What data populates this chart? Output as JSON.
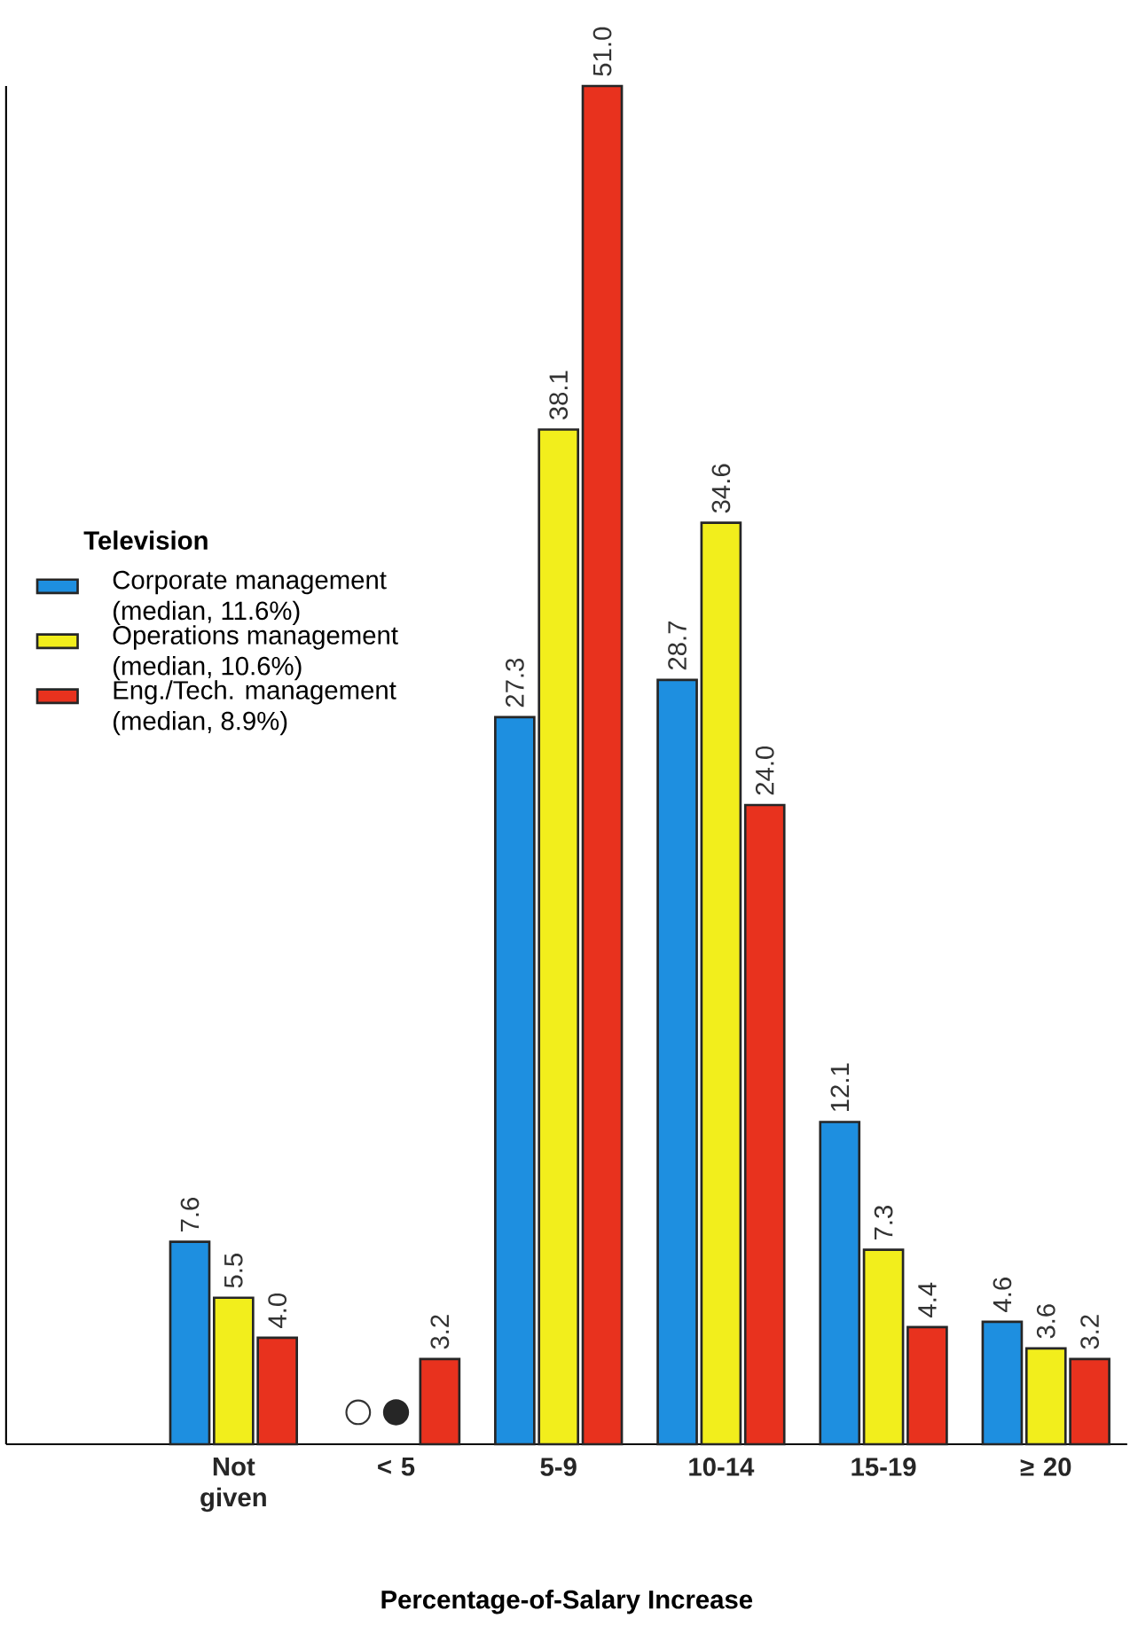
{
  "chart_data": {
    "type": "bar",
    "categories": [
      "Not given",
      "< 5",
      "5-9",
      "10-14",
      "15-19",
      "≥ 20"
    ],
    "series": [
      {
        "name": "Corporate management (median, 11.6%)",
        "color": "#1e8fe0",
        "values": [
          7.6,
          null,
          27.3,
          28.7,
          12.1,
          4.6
        ],
        "value_labels": [
          "7.6",
          null,
          "27.3",
          "28.7",
          "12.1",
          "4.6"
        ]
      },
      {
        "name": "Operations management (median, 10.6%)",
        "color": "#f2ee1c",
        "values": [
          5.5,
          null,
          38.1,
          34.6,
          7.3,
          3.6
        ],
        "value_labels": [
          "5.5",
          null,
          "38.1",
          "34.6",
          "7.3",
          "3.6"
        ]
      },
      {
        "name": "Eng./Tech. management (median, 8.9%)",
        "color": "#e8321e",
        "values": [
          4.0,
          3.2,
          51.0,
          24.0,
          4.4,
          3.2
        ],
        "value_labels": [
          "4.0",
          "3.2",
          "51.0",
          "24.0",
          "4.4",
          "3.2"
        ]
      }
    ],
    "legend_title": "Television",
    "legend": "left",
    "xlabel": "Percentage-of-Salary Increase",
    "tick_labels": "x"
  }
}
